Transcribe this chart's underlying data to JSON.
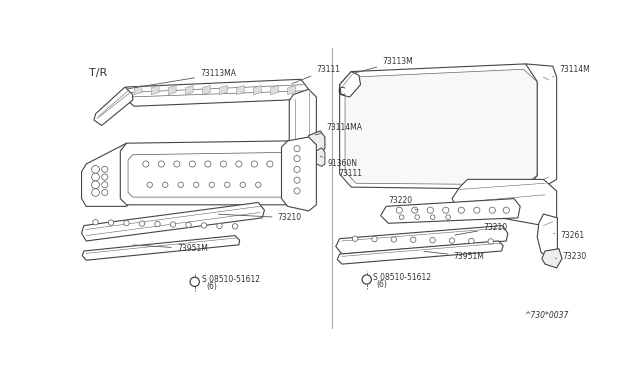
{
  "bg_color": "#ffffff",
  "line_color": "#333333",
  "text_color": "#333333",
  "divider_color": "#999999",
  "hatch_color": "#888888",
  "diagram_code": "^730*0037",
  "left_label": "T/R",
  "right_label": "C",
  "font_size_main": 7,
  "font_size_small": 5.5,
  "font_size_label": 8
}
